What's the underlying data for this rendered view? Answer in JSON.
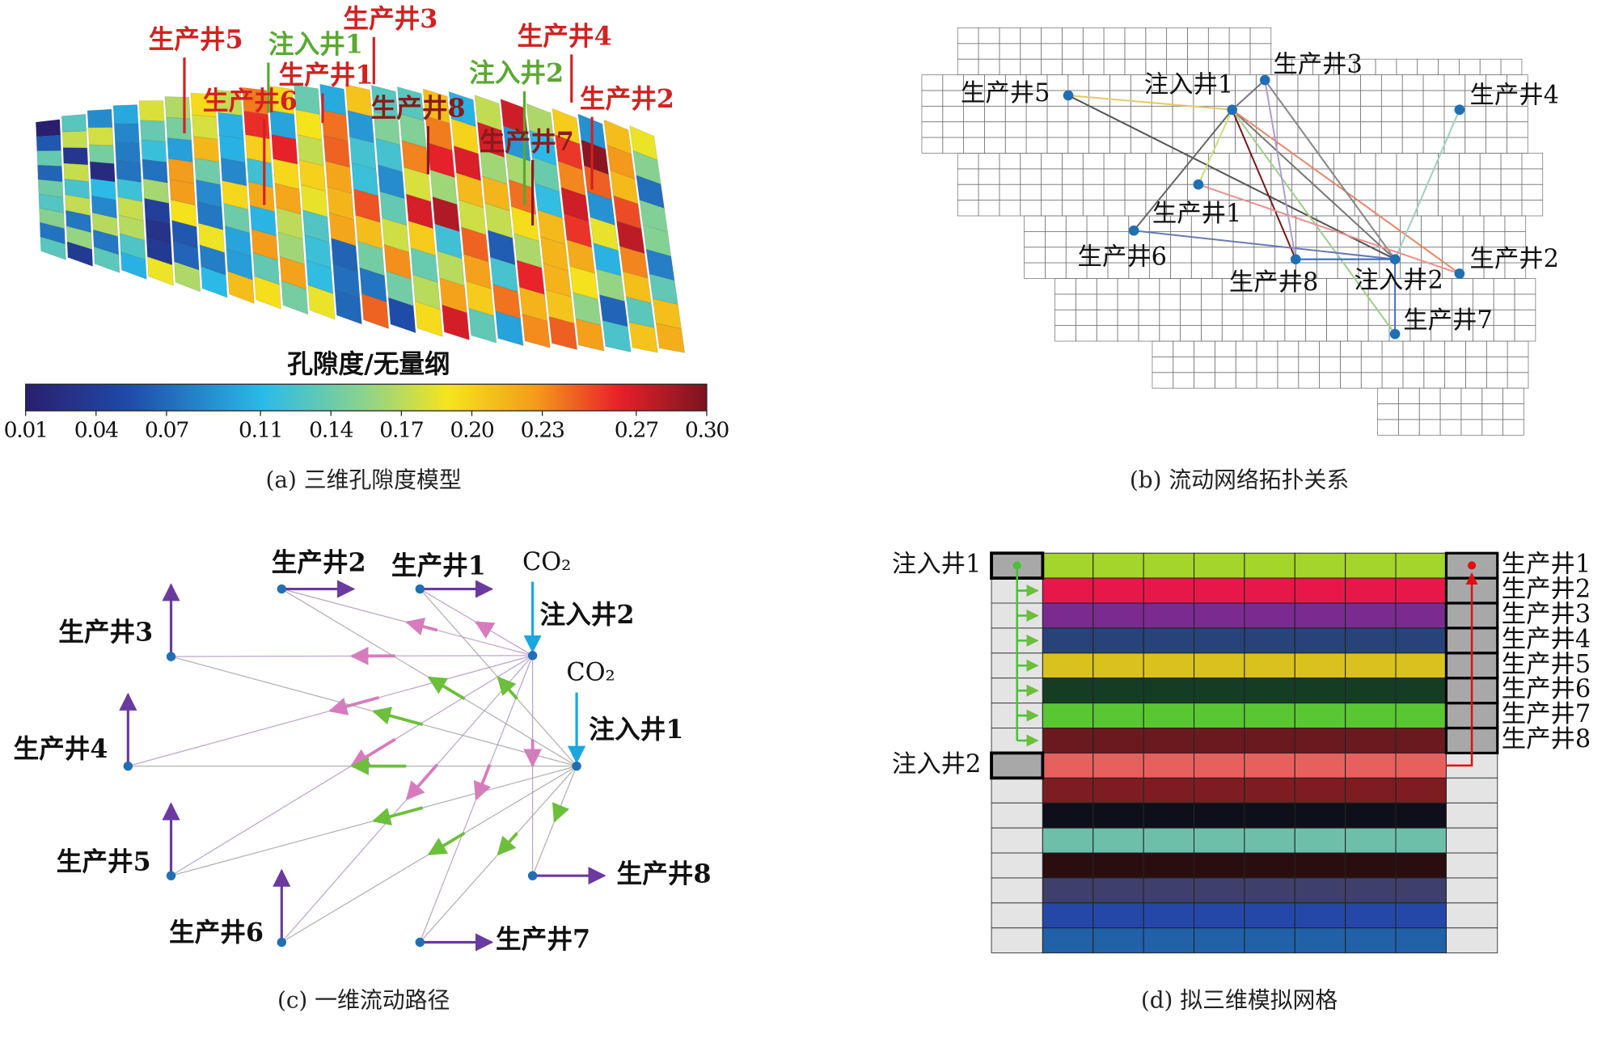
{
  "panel_a": {
    "caption": "(a) 三维孔隙度模型",
    "colorbar": {
      "title": "孔隙度/无量纲",
      "range": [
        0.01,
        0.3
      ],
      "ticks": [
        0.01,
        0.04,
        0.07,
        0.11,
        0.14,
        0.17,
        {
          "value": 0.2,
          "label": "0.20"
        },
        0.23,
        0.27,
        {
          "value": 0.3,
          "label": "0.30"
        }
      ]
    },
    "wells": [
      {
        "label": "生产井5",
        "color": "#d42020"
      },
      {
        "label": "注入井1",
        "color": "#5aa832"
      },
      {
        "label": "生产井3",
        "color": "#d42020"
      },
      {
        "label": "生产井1",
        "color": "#d42020"
      },
      {
        "label": "生产井6",
        "color": "#d42020"
      },
      {
        "label": "生产井8",
        "color": "#8b1a1a"
      },
      {
        "label": "注入井2",
        "color": "#5aa832"
      },
      {
        "label": "生产井7",
        "color": "#8b1a1a"
      },
      {
        "label": "生产井4",
        "color": "#d42020"
      },
      {
        "label": "生产井2",
        "color": "#d42020"
      }
    ]
  },
  "panel_b": {
    "caption": "(b) 流动网络拓扑关系",
    "wells": [
      "生产井5",
      "注入井1",
      "生产井3",
      "生产井4",
      "生产井1",
      "生产井6",
      "生产井8",
      "注入井2",
      "生产井2",
      "生产井7"
    ]
  },
  "panel_c": {
    "caption": "(c) 一维流动路径",
    "wells": [
      "生产井3",
      "生产井4",
      "生产井5",
      "生产井6",
      "生产井2",
      "生产井1",
      "注入井2",
      "注入井1",
      "生产井8",
      "生产井7"
    ],
    "co2_labels": [
      "CO₂",
      "CO₂"
    ]
  },
  "panel_d": {
    "caption": "(d) 拟三维模拟网格",
    "injectors": [
      "注入井1",
      "注入井2"
    ],
    "producers": [
      "生产井1",
      "生产井2",
      "生产井3",
      "生产井4",
      "生产井5",
      "生产井6",
      "生产井7",
      "生产井8"
    ]
  }
}
